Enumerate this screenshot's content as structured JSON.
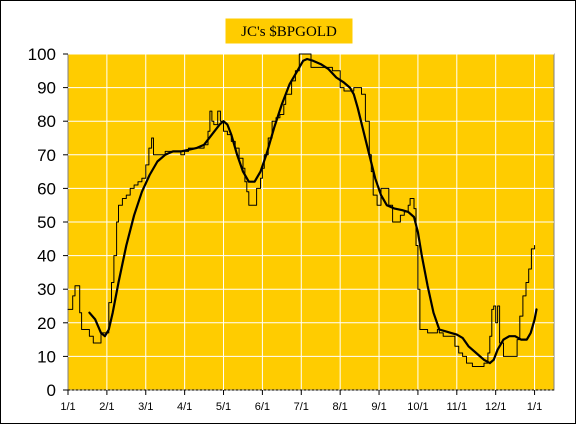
{
  "chart_data": {
    "type": "line",
    "title": "JC's $BPGOLD",
    "xlabel": "",
    "ylabel": "",
    "ylim": [
      0,
      100
    ],
    "yticks": [
      0,
      10,
      20,
      30,
      40,
      50,
      60,
      70,
      80,
      90,
      100
    ],
    "xlim": [
      0,
      12.5
    ],
    "xtick_labels": [
      "1/1",
      "2/1",
      "3/1",
      "4/1",
      "5/1",
      "6/1",
      "7/1",
      "8/1",
      "9/1",
      "10/1",
      "11/1",
      "12/1",
      "1/1"
    ],
    "grid": true,
    "legend": "none",
    "colors": {
      "plot_background": "#FFCC00",
      "title_background": "#FFCC00",
      "grid": "#FFFFFF",
      "raw_series": "#000000",
      "smoothed_series": "#000000"
    },
    "series": [
      {
        "style": "thin-step",
        "points": [
          [
            0.0,
            24
          ],
          [
            0.08,
            24
          ],
          [
            0.12,
            28
          ],
          [
            0.18,
            31
          ],
          [
            0.25,
            31
          ],
          [
            0.3,
            23
          ],
          [
            0.35,
            18
          ],
          [
            0.45,
            18
          ],
          [
            0.55,
            16
          ],
          [
            0.65,
            14
          ],
          [
            0.8,
            14
          ],
          [
            0.85,
            17
          ],
          [
            0.95,
            17
          ],
          [
            1.05,
            26
          ],
          [
            1.12,
            32
          ],
          [
            1.18,
            40
          ],
          [
            1.25,
            50
          ],
          [
            1.3,
            55
          ],
          [
            1.4,
            57
          ],
          [
            1.5,
            58
          ],
          [
            1.6,
            60
          ],
          [
            1.7,
            61
          ],
          [
            1.8,
            62
          ],
          [
            1.9,
            63
          ],
          [
            2.0,
            67
          ],
          [
            2.08,
            72
          ],
          [
            2.15,
            75
          ],
          [
            2.2,
            70
          ],
          [
            2.3,
            70
          ],
          [
            2.5,
            71
          ],
          [
            2.7,
            71
          ],
          [
            2.9,
            70
          ],
          [
            3.0,
            71
          ],
          [
            3.1,
            72
          ],
          [
            3.3,
            72
          ],
          [
            3.5,
            73
          ],
          [
            3.6,
            77
          ],
          [
            3.65,
            83
          ],
          [
            3.7,
            80
          ],
          [
            3.75,
            79
          ],
          [
            3.85,
            83
          ],
          [
            3.92,
            80
          ],
          [
            4.0,
            77
          ],
          [
            4.1,
            76
          ],
          [
            4.2,
            74
          ],
          [
            4.3,
            72
          ],
          [
            4.4,
            69
          ],
          [
            4.5,
            66
          ],
          [
            4.55,
            62
          ],
          [
            4.6,
            59
          ],
          [
            4.65,
            55
          ],
          [
            4.75,
            55
          ],
          [
            4.85,
            60
          ],
          [
            4.95,
            63
          ],
          [
            5.0,
            66
          ],
          [
            5.05,
            70
          ],
          [
            5.15,
            75
          ],
          [
            5.25,
            80
          ],
          [
            5.35,
            81
          ],
          [
            5.45,
            82
          ],
          [
            5.55,
            85
          ],
          [
            5.6,
            88
          ],
          [
            5.7,
            88
          ],
          [
            5.75,
            92
          ],
          [
            5.85,
            95
          ],
          [
            5.95,
            100
          ],
          [
            6.05,
            100
          ],
          [
            6.2,
            100
          ],
          [
            6.25,
            96
          ],
          [
            6.35,
            96
          ],
          [
            6.55,
            96
          ],
          [
            6.7,
            96
          ],
          [
            6.8,
            95
          ],
          [
            6.9,
            95
          ],
          [
            7.0,
            90
          ],
          [
            7.1,
            89
          ],
          [
            7.2,
            89
          ],
          [
            7.35,
            90
          ],
          [
            7.45,
            90
          ],
          [
            7.55,
            88
          ],
          [
            7.65,
            80
          ],
          [
            7.75,
            70
          ],
          [
            7.8,
            65
          ],
          [
            7.85,
            58
          ],
          [
            7.95,
            55
          ],
          [
            8.05,
            60
          ],
          [
            8.15,
            60
          ],
          [
            8.25,
            55
          ],
          [
            8.35,
            50
          ],
          [
            8.45,
            50
          ],
          [
            8.55,
            52
          ],
          [
            8.65,
            53
          ],
          [
            8.75,
            55
          ],
          [
            8.8,
            57
          ],
          [
            8.9,
            54
          ],
          [
            8.95,
            43
          ],
          [
            9.0,
            30
          ],
          [
            9.05,
            18
          ],
          [
            9.15,
            18
          ],
          [
            9.25,
            17
          ],
          [
            9.4,
            17
          ],
          [
            9.5,
            18
          ],
          [
            9.55,
            17
          ],
          [
            9.65,
            16
          ],
          [
            9.75,
            16
          ],
          [
            9.85,
            16
          ],
          [
            9.95,
            13
          ],
          [
            10.05,
            11
          ],
          [
            10.15,
            10
          ],
          [
            10.25,
            8
          ],
          [
            10.4,
            7
          ],
          [
            10.55,
            7
          ],
          [
            10.7,
            8
          ],
          [
            10.8,
            11
          ],
          [
            10.85,
            16
          ],
          [
            10.9,
            24
          ],
          [
            10.95,
            25
          ],
          [
            11.0,
            20
          ],
          [
            11.05,
            25
          ],
          [
            11.1,
            14
          ],
          [
            11.2,
            10
          ],
          [
            11.35,
            10
          ],
          [
            11.5,
            10
          ],
          [
            11.55,
            15
          ],
          [
            11.62,
            22
          ],
          [
            11.7,
            28
          ],
          [
            11.78,
            32
          ],
          [
            11.85,
            36
          ],
          [
            11.92,
            42
          ],
          [
            12.0,
            43
          ]
        ]
      },
      {
        "style": "thick-smooth",
        "points": [
          [
            0.55,
            23
          ],
          [
            0.7,
            21
          ],
          [
            0.85,
            17
          ],
          [
            0.95,
            16
          ],
          [
            1.05,
            18
          ],
          [
            1.15,
            23
          ],
          [
            1.3,
            32
          ],
          [
            1.5,
            43
          ],
          [
            1.7,
            52
          ],
          [
            1.9,
            59
          ],
          [
            2.1,
            64
          ],
          [
            2.3,
            68
          ],
          [
            2.5,
            70
          ],
          [
            2.7,
            71
          ],
          [
            2.9,
            71
          ],
          [
            3.1,
            71.5
          ],
          [
            3.3,
            72
          ],
          [
            3.5,
            73
          ],
          [
            3.7,
            76
          ],
          [
            3.9,
            79
          ],
          [
            4.0,
            80
          ],
          [
            4.1,
            79
          ],
          [
            4.2,
            76
          ],
          [
            4.35,
            70
          ],
          [
            4.5,
            65
          ],
          [
            4.65,
            62
          ],
          [
            4.8,
            62
          ],
          [
            4.95,
            65
          ],
          [
            5.1,
            70
          ],
          [
            5.3,
            78
          ],
          [
            5.5,
            85
          ],
          [
            5.7,
            91
          ],
          [
            5.9,
            95
          ],
          [
            6.05,
            98
          ],
          [
            6.15,
            98.5
          ],
          [
            6.3,
            98
          ],
          [
            6.5,
            97
          ],
          [
            6.7,
            95.5
          ],
          [
            6.9,
            93
          ],
          [
            7.1,
            91.5
          ],
          [
            7.25,
            90
          ],
          [
            7.35,
            88
          ],
          [
            7.45,
            84
          ],
          [
            7.6,
            77
          ],
          [
            7.75,
            70
          ],
          [
            7.9,
            63
          ],
          [
            8.05,
            58
          ],
          [
            8.2,
            55
          ],
          [
            8.4,
            54
          ],
          [
            8.6,
            53.5
          ],
          [
            8.75,
            53
          ],
          [
            8.9,
            51.5
          ],
          [
            9.0,
            47
          ],
          [
            9.1,
            40
          ],
          [
            9.25,
            31
          ],
          [
            9.4,
            23
          ],
          [
            9.55,
            18
          ],
          [
            9.7,
            17.5
          ],
          [
            9.85,
            17
          ],
          [
            10.0,
            16.5
          ],
          [
            10.15,
            15.5
          ],
          [
            10.3,
            13
          ],
          [
            10.5,
            11
          ],
          [
            10.7,
            9
          ],
          [
            10.85,
            8
          ],
          [
            10.95,
            9
          ],
          [
            11.05,
            12
          ],
          [
            11.2,
            15
          ],
          [
            11.35,
            16
          ],
          [
            11.5,
            16
          ],
          [
            11.65,
            15
          ],
          [
            11.8,
            15
          ],
          [
            11.9,
            17
          ],
          [
            12.0,
            21
          ],
          [
            12.05,
            24
          ]
        ]
      }
    ]
  }
}
